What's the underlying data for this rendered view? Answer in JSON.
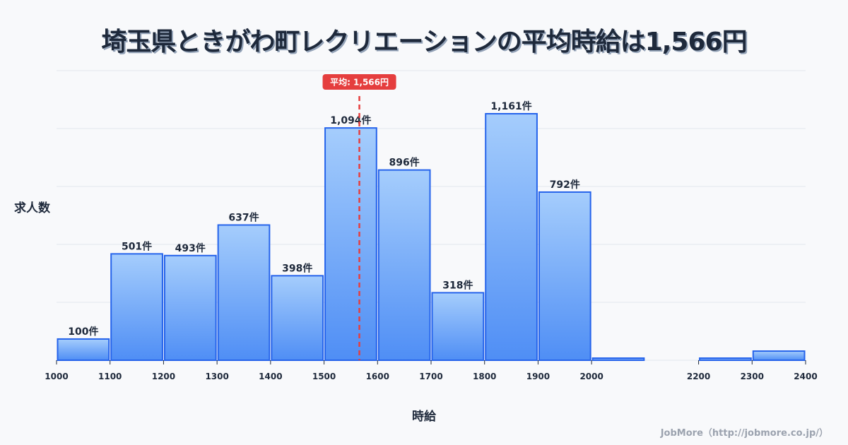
{
  "header": {
    "title": "埼玉県ときがわ町レクリエーションの平均時給は1,566円"
  },
  "axes": {
    "ylabel": "求人数",
    "xlabel": "時給"
  },
  "average": {
    "label": "平均: 1,566円",
    "value": 1566,
    "color": "#e53e3e"
  },
  "footer": {
    "credit": "JobMore（http://jobmore.co.jp/）"
  },
  "colors": {
    "bar_top": "#a5cdfc",
    "bar_bottom": "#4f8ef5",
    "bar_border": "#2563eb",
    "grid": "#e2e6ee",
    "background": "#f8f9fb"
  },
  "chart_data": {
    "type": "bar",
    "title": "埼玉県ときがわ町レクリエーションの平均時給は1,566円",
    "xlabel": "時給",
    "ylabel": "求人数",
    "bins": [
      {
        "from": 1000,
        "to": 1100,
        "count": 100,
        "label": "100件"
      },
      {
        "from": 1100,
        "to": 1200,
        "count": 501,
        "label": "501件"
      },
      {
        "from": 1200,
        "to": 1300,
        "count": 493,
        "label": "493件"
      },
      {
        "from": 1300,
        "to": 1400,
        "count": 637,
        "label": "637件"
      },
      {
        "from": 1400,
        "to": 1500,
        "count": 398,
        "label": "398件"
      },
      {
        "from": 1500,
        "to": 1600,
        "count": 1094,
        "label": "1,094件"
      },
      {
        "from": 1600,
        "to": 1700,
        "count": 896,
        "label": "896件"
      },
      {
        "from": 1700,
        "to": 1800,
        "count": 318,
        "label": "318件"
      },
      {
        "from": 1800,
        "to": 1900,
        "count": 1161,
        "label": "1,161件"
      },
      {
        "from": 1900,
        "to": 2000,
        "count": 792,
        "label": "792件"
      },
      {
        "from": 2000,
        "to": 2100,
        "count": 1,
        "label": ""
      },
      {
        "from": 2100,
        "to": 2200,
        "count": 0,
        "label": ""
      },
      {
        "from": 2200,
        "to": 2300,
        "count": 1,
        "label": ""
      },
      {
        "from": 2300,
        "to": 2400,
        "count": 43,
        "label": ""
      }
    ],
    "x_ticks": [
      "1000",
      "1100",
      "1200",
      "1300",
      "1400",
      "1500",
      "1600",
      "1700",
      "1800",
      "1900",
      "2000",
      "2200",
      "2300",
      "2400"
    ],
    "x_tick_values": [
      1000,
      1100,
      1200,
      1300,
      1400,
      1500,
      1600,
      1700,
      1800,
      1900,
      2000,
      2200,
      2300,
      2400
    ],
    "xlim": [
      1000,
      2400
    ],
    "ylim": [
      0,
      1364
    ],
    "grid": true,
    "y_grid_count": 5,
    "annotations": [
      {
        "type": "vline",
        "x": 1566,
        "text": "平均: 1,566円"
      }
    ]
  }
}
